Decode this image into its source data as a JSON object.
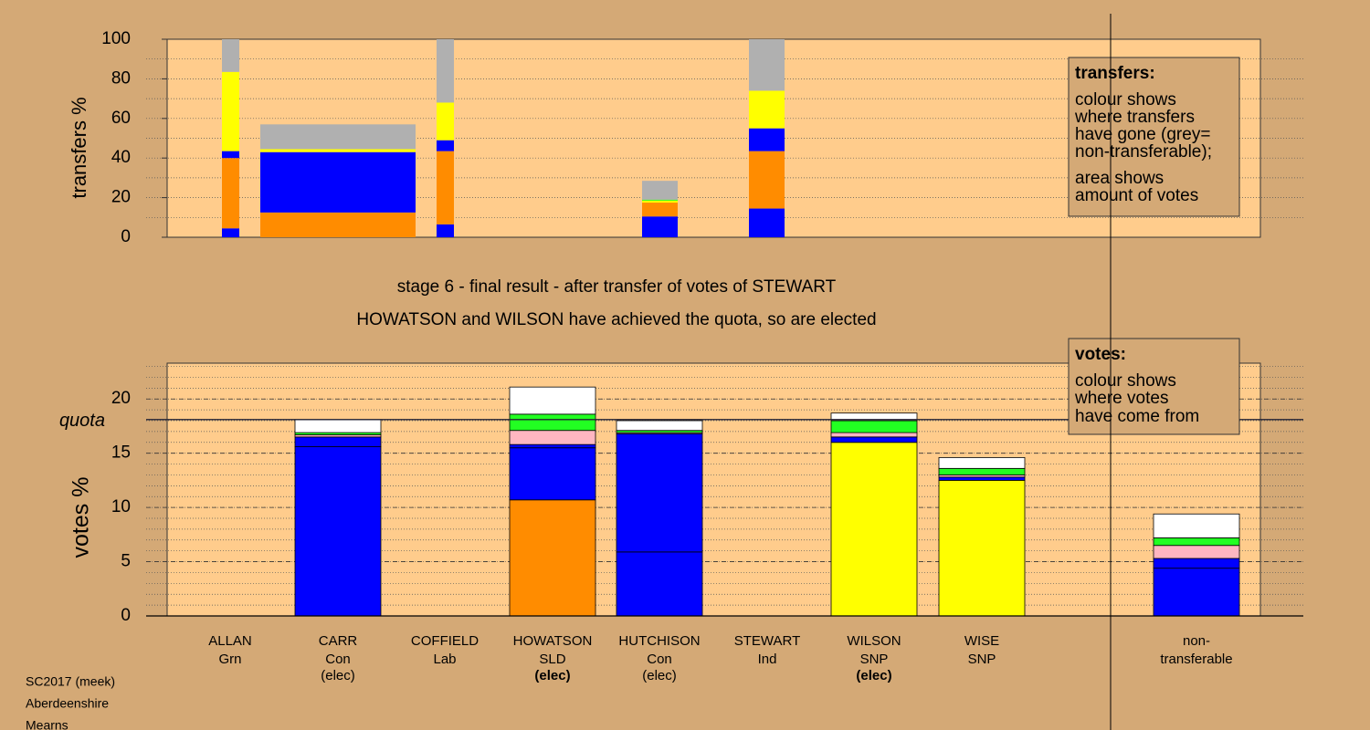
{
  "chart_data": [
    {
      "type": "stacked-bar",
      "ylabel": "transfers %",
      "ylim": [
        0,
        100
      ],
      "yticks": [
        0,
        20,
        40,
        60,
        80,
        100
      ],
      "legend": {
        "title": "transfers:",
        "lines": [
          "colour shows",
          "where transfers",
          "have gone (grey=",
          "non-transferable);",
          "area shows",
          "amount of votes"
        ]
      },
      "bars": [
        {
          "segments": [
            {
              "color": "#0000ff",
              "value": 4.5
            },
            {
              "color": "#ff8c00",
              "value": 35.5
            },
            {
              "color": "#0000ff",
              "value": 3.5
            },
            {
              "color": "#ffff00",
              "value": 40
            },
            {
              "color": "#b0b0b0",
              "value": 16.5
            }
          ]
        },
        {
          "segments": [
            {
              "color": "#ff8c00",
              "value": 12.5
            },
            {
              "color": "#0000ff",
              "value": 30.5
            },
            {
              "color": "#ffff00",
              "value": 1.5
            },
            {
              "color": "#b0b0b0",
              "value": 12.5
            }
          ]
        },
        {
          "segments": [
            {
              "color": "#0000ff",
              "value": 6.5
            },
            {
              "color": "#ff8c00",
              "value": 37
            },
            {
              "color": "#0000ff",
              "value": 5.5
            },
            {
              "color": "#ffff00",
              "value": 19
            },
            {
              "color": "#b0b0b0",
              "value": 32
            }
          ]
        },
        {
          "segments": [
            {
              "color": "#0000ff",
              "value": 10.5
            },
            {
              "color": "#ff8c00",
              "value": 7
            },
            {
              "color": "#ffff00",
              "value": 1
            },
            {
              "color": "#22ff22",
              "value": 0.5
            },
            {
              "color": "#b0b0b0",
              "value": 9.5
            }
          ]
        },
        {
          "segments": [
            {
              "color": "#0000ff",
              "value": 14.5
            },
            {
              "color": "#ff8c00",
              "value": 29
            },
            {
              "color": "#0000ff",
              "value": 11.5
            },
            {
              "color": "#ffff00",
              "value": 19
            },
            {
              "color": "#b0b0b0",
              "value": 26
            }
          ]
        }
      ]
    },
    {
      "type": "stacked-bar",
      "title": "stage 6 - final result - after transfer of votes of STEWART",
      "subtitle": "HOWATSON and WILSON have achieved the quota, so are elected",
      "ylabel": "votes %",
      "ylim": [
        0,
        23.3
      ],
      "yticks": [
        0,
        5,
        10,
        15,
        20
      ],
      "quota": 18.1,
      "quota_label": "quota",
      "legend": {
        "title": "votes:",
        "lines": [
          "colour shows",
          "where votes",
          "have come from"
        ]
      },
      "categories": [
        {
          "name": "ALLAN",
          "party": "Grn",
          "segments": []
        },
        {
          "name": "CARR",
          "party": "Con",
          "status": "(elec)",
          "status_bold": false,
          "segments": [
            {
              "color": "#0000ff",
              "value": 15.6
            },
            {
              "color": "#0000ff",
              "value": 0.9
            },
            {
              "color": "#ffb6c1",
              "value": 0.2
            },
            {
              "color": "#22ff22",
              "value": 0.2
            },
            {
              "color": "#ffffff",
              "value": 1.2
            }
          ]
        },
        {
          "name": "COFFIELD",
          "party": "Lab",
          "segments": []
        },
        {
          "name": "HOWATSON",
          "party": "SLD",
          "status": "(elec)",
          "status_bold": true,
          "segments": [
            {
              "color": "#ff8c00",
              "value": 10.7
            },
            {
              "color": "#0000ff",
              "value": 4.8
            },
            {
              "color": "#0000ff",
              "value": 0.3
            },
            {
              "color": "#ffb6c1",
              "value": 1.3
            },
            {
              "color": "#22ff22",
              "value": 1.5
            },
            {
              "color": "#ffffff",
              "value": 2.5
            }
          ]
        },
        {
          "name": "HUTCHISON",
          "party": "Con",
          "status": "(elec)",
          "status_bold": false,
          "segments": [
            {
              "color": "#0000ff",
              "value": 5.9
            },
            {
              "color": "#0000ff",
              "value": 10.9
            },
            {
              "color": "#ffb6c1",
              "value": 0.1
            },
            {
              "color": "#22ff22",
              "value": 0.2
            },
            {
              "color": "#ffffff",
              "value": 0.9
            }
          ]
        },
        {
          "name": "STEWART",
          "party": "Ind",
          "segments": []
        },
        {
          "name": "WILSON",
          "party": "SNP",
          "status": "(elec)",
          "status_bold": true,
          "segments": [
            {
              "color": "#ffff00",
              "value": 16
            },
            {
              "color": "#0000ff",
              "value": 0.5
            },
            {
              "color": "#ffb6c1",
              "value": 0.4
            },
            {
              "color": "#22ff22",
              "value": 1.1
            },
            {
              "color": "#ffffff",
              "value": 0.7
            }
          ]
        },
        {
          "name": "WISE",
          "party": "SNP",
          "segments": [
            {
              "color": "#ffff00",
              "value": 12.5
            },
            {
              "color": "#0000ff",
              "value": 0.3
            },
            {
              "color": "#ffb6c1",
              "value": 0.2
            },
            {
              "color": "#22ff22",
              "value": 0.6
            },
            {
              "color": "#ffffff",
              "value": 1.0
            }
          ]
        },
        {
          "name": "non-",
          "party": "transferable",
          "segments": [
            {
              "color": "#0000ff",
              "value": 4.4
            },
            {
              "color": "#0000ff",
              "value": 0.9
            },
            {
              "color": "#ffb6c1",
              "value": 1.2
            },
            {
              "color": "#22ff22",
              "value": 0.7
            },
            {
              "color": "#ffffff",
              "value": 2.2
            }
          ]
        }
      ]
    }
  ],
  "footer": [
    "SC2017 (meek)",
    "Aberdeenshire",
    "Mearns"
  ]
}
